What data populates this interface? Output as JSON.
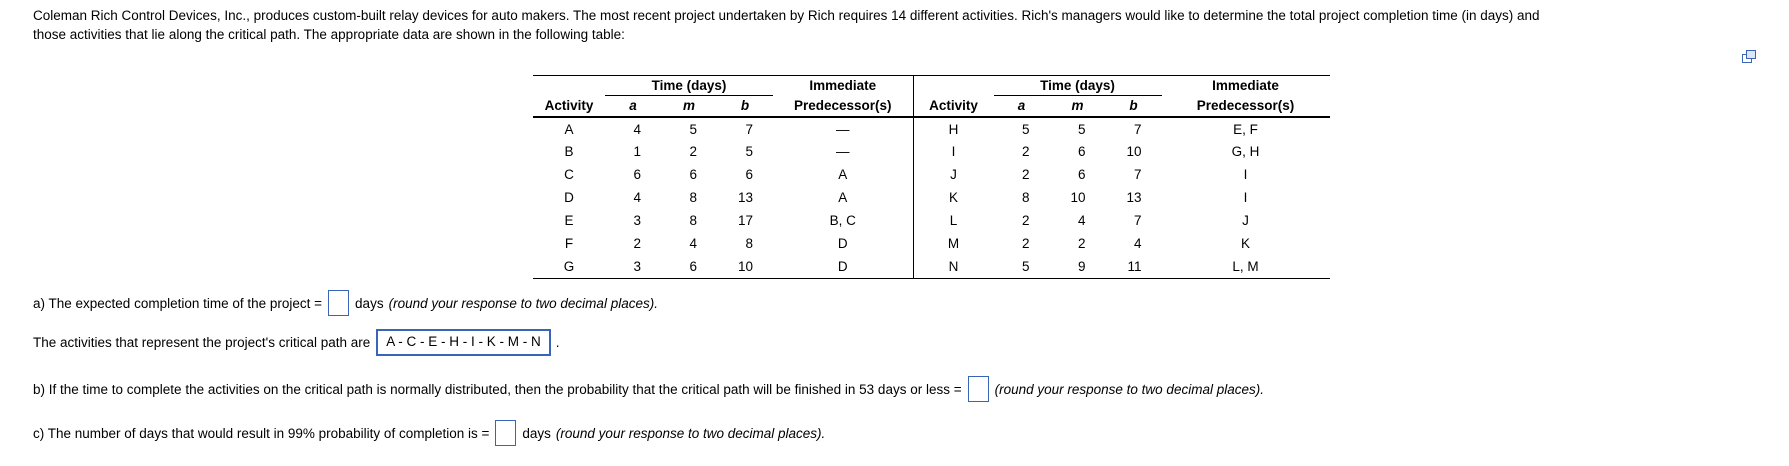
{
  "problem": {
    "line1": "Coleman Rich Control Devices, Inc., produces custom-built relay devices for auto makers. The most recent project undertaken by Rich requires 14 different activities. Rich's managers would like to determine the total project completion time (in days) and",
    "line2": "those activities that lie along the critical path. The appropriate data are shown in the following table:"
  },
  "icons": {
    "top_right": "popup-window-icon"
  },
  "accent_color": "#3a64b5",
  "table": {
    "time_group_header": "Time (days)",
    "col_activity": "Activity",
    "col_a": "a",
    "col_m": "m",
    "col_b": "b",
    "imm_line1": "Immediate",
    "imm_line2": "Predecessor(s)",
    "left_rows": [
      {
        "activity": "A",
        "a": "4",
        "m": "5",
        "b": "7",
        "pred": "—"
      },
      {
        "activity": "B",
        "a": "1",
        "m": "2",
        "b": "5",
        "pred": "—"
      },
      {
        "activity": "C",
        "a": "6",
        "m": "6",
        "b": "6",
        "pred": "A"
      },
      {
        "activity": "D",
        "a": "4",
        "m": "8",
        "b": "13",
        "pred": "A"
      },
      {
        "activity": "E",
        "a": "3",
        "m": "8",
        "b": "17",
        "pred": "B, C"
      },
      {
        "activity": "F",
        "a": "2",
        "m": "4",
        "b": "8",
        "pred": "D"
      },
      {
        "activity": "G",
        "a": "3",
        "m": "6",
        "b": "10",
        "pred": "D"
      }
    ],
    "right_rows": [
      {
        "activity": "H",
        "a": "5",
        "m": "5",
        "b": "7",
        "pred": "E, F"
      },
      {
        "activity": "I",
        "a": "2",
        "m": "6",
        "b": "10",
        "pred": "G, H"
      },
      {
        "activity": "J",
        "a": "2",
        "m": "6",
        "b": "7",
        "pred": "I"
      },
      {
        "activity": "K",
        "a": "8",
        "m": "10",
        "b": "13",
        "pred": "I"
      },
      {
        "activity": "L",
        "a": "2",
        "m": "4",
        "b": "7",
        "pred": "J"
      },
      {
        "activity": "M",
        "a": "2",
        "m": "2",
        "b": "4",
        "pred": "K"
      },
      {
        "activity": "N",
        "a": "5",
        "m": "9",
        "b": "11",
        "pred": "L, M"
      }
    ]
  },
  "questions": {
    "a_prefix": "a) The expected completion time of the project =",
    "a_input_value": "",
    "a_suffix": "days",
    "a_note": "(round your response to two decimal places).",
    "cp_prefix": "The activities that represent the project's critical path are",
    "cp_value": "A - C - E - H - I - K - M - N",
    "cp_suffix": ".",
    "b_prefix": "b) If the time to complete the activities on the critical path is normally distributed, then the probability that the critical path will be finished in 53 days or less =",
    "b_input_value": "",
    "b_note": "(round your response to two decimal places).",
    "c_prefix": "c) The number of days that would result in 99% probability of completion is =",
    "c_input_value": "",
    "c_suffix": "days",
    "c_note": "(round your response to two decimal places)."
  }
}
